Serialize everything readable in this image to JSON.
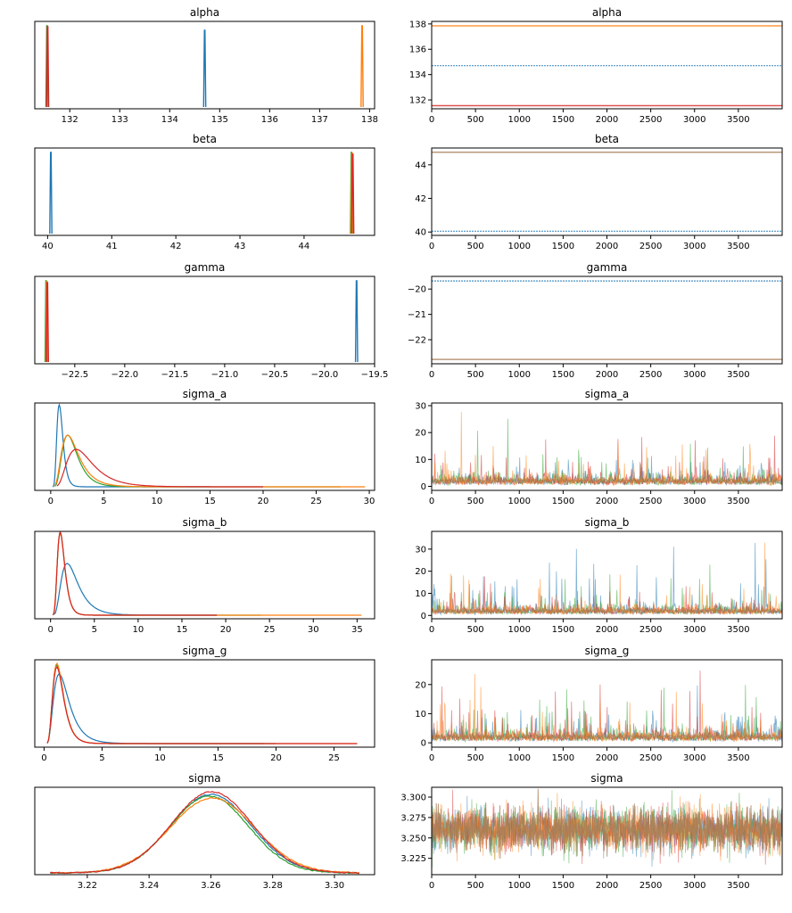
{
  "colors": {
    "chain_1": "#1f77b4",
    "chain_2": "#ff7f0e",
    "chain_3": "#2ca02c",
    "chain_4": "#d62728",
    "trace_mixed": "#a8805a"
  },
  "chart_data": [
    {
      "type": "line",
      "panel": "density",
      "title": "alpha",
      "xticks": [
        "132",
        "133",
        "134",
        "135",
        "136",
        "137",
        "138"
      ],
      "xlim": [
        131.3,
        138.1
      ],
      "features": {
        "peaks": [
          131.55,
          134.7,
          137.85
        ]
      }
    },
    {
      "type": "line",
      "panel": "trace",
      "title": "alpha",
      "xticks": [
        "0",
        "500",
        "1000",
        "1500",
        "2000",
        "2500",
        "3000",
        "3500"
      ],
      "yticks": [
        "132",
        "134",
        "136",
        "138"
      ],
      "xlim": [
        0,
        4000
      ],
      "ylim": [
        131.3,
        138.2
      ],
      "levels": [
        131.55,
        134.7,
        137.85
      ]
    },
    {
      "type": "line",
      "panel": "density",
      "title": "beta",
      "xticks": [
        "40",
        "41",
        "42",
        "43",
        "44"
      ],
      "xlim": [
        39.8,
        45.1
      ],
      "features": {
        "peaks": [
          40.05,
          44.75
        ]
      }
    },
    {
      "type": "line",
      "panel": "trace",
      "title": "beta",
      "xticks": [
        "0",
        "500",
        "1000",
        "1500",
        "2000",
        "2500",
        "3000",
        "3500"
      ],
      "yticks": [
        "40",
        "42",
        "44"
      ],
      "xlim": [
        0,
        4000
      ],
      "ylim": [
        39.8,
        45.0
      ],
      "levels": [
        40.05,
        44.75
      ]
    },
    {
      "type": "line",
      "panel": "density",
      "title": "gamma",
      "xticks": [
        "−22.5",
        "−22.0",
        "−21.5",
        "−21.0",
        "−20.5",
        "−20.0",
        "−19.5"
      ],
      "xlim": [
        -22.9,
        -19.5
      ],
      "features": {
        "peaks": [
          -22.78,
          -19.68
        ]
      }
    },
    {
      "type": "line",
      "panel": "trace",
      "title": "gamma",
      "xticks": [
        "0",
        "500",
        "1000",
        "1500",
        "2000",
        "2500",
        "3000",
        "3500"
      ],
      "yticks": [
        "−20",
        "−21",
        "−22"
      ],
      "xlim": [
        0,
        4000
      ],
      "ylim": [
        -22.95,
        -19.5
      ],
      "levels": [
        -19.68,
        -22.78
      ]
    },
    {
      "type": "line",
      "panel": "density",
      "title": "sigma_a",
      "xticks": [
        "0",
        "5",
        "10",
        "15",
        "20",
        "25",
        "30"
      ],
      "xlim": [
        -1.5,
        30.5
      ],
      "features": {
        "modes": [
          0.8,
          1.6,
          1.6,
          2.4
        ],
        "tail_ends": [
          15,
          29.6,
          27.3,
          20
        ]
      }
    },
    {
      "type": "line",
      "panel": "trace",
      "title": "sigma_a",
      "xticks": [
        "0",
        "500",
        "1000",
        "1500",
        "2000",
        "2500",
        "3000",
        "3500"
      ],
      "yticks": [
        "0",
        "10",
        "20",
        "30"
      ],
      "xlim": [
        0,
        4000
      ],
      "ylim": [
        -1.5,
        31
      ]
    },
    {
      "type": "line",
      "panel": "density",
      "title": "sigma_b",
      "xticks": [
        "0",
        "5",
        "10",
        "15",
        "20",
        "25",
        "30",
        "35"
      ],
      "xlim": [
        -1.8,
        37
      ],
      "features": {
        "modes": [
          1.9,
          1.1,
          1.1,
          1.1
        ],
        "tail_ends": [
          19,
          35.5,
          24,
          19
        ]
      }
    },
    {
      "type": "line",
      "panel": "trace",
      "title": "sigma_b",
      "xticks": [
        "0",
        "500",
        "1000",
        "1500",
        "2000",
        "2500",
        "3000",
        "3500"
      ],
      "yticks": [
        "0",
        "10",
        "20",
        "30"
      ],
      "xlim": [
        0,
        4000
      ],
      "ylim": [
        -1.5,
        38
      ]
    },
    {
      "type": "line",
      "panel": "density",
      "title": "sigma_g",
      "xticks": [
        "0",
        "5",
        "10",
        "15",
        "20",
        "25"
      ],
      "xlim": [
        -0.8,
        28.5
      ],
      "features": {
        "modes": [
          1.3,
          1.1,
          1.1,
          1.1
        ],
        "tail_ends": [
          19,
          27,
          20,
          27
        ]
      }
    },
    {
      "type": "line",
      "panel": "trace",
      "title": "sigma_g",
      "xticks": [
        "0",
        "500",
        "1000",
        "1500",
        "2000",
        "2500",
        "3000",
        "3500"
      ],
      "yticks": [
        "0",
        "10",
        "20"
      ],
      "xlim": [
        0,
        4000
      ],
      "ylim": [
        -1.5,
        28.5
      ]
    },
    {
      "type": "line",
      "panel": "density",
      "title": "sigma",
      "xticks": [
        "3.22",
        "3.24",
        "3.26",
        "3.28",
        "3.30"
      ],
      "xlim": [
        3.203,
        3.313
      ],
      "features": {
        "mean": 3.26,
        "sd": 0.013
      }
    },
    {
      "type": "line",
      "panel": "trace",
      "title": "sigma",
      "xticks": [
        "0",
        "500",
        "1000",
        "1500",
        "2000",
        "2500",
        "3000",
        "3500"
      ],
      "yticks": [
        "3.225",
        "3.250",
        "3.275",
        "3.300"
      ],
      "xlim": [
        0,
        4000
      ],
      "ylim": [
        3.205,
        3.312
      ]
    }
  ]
}
